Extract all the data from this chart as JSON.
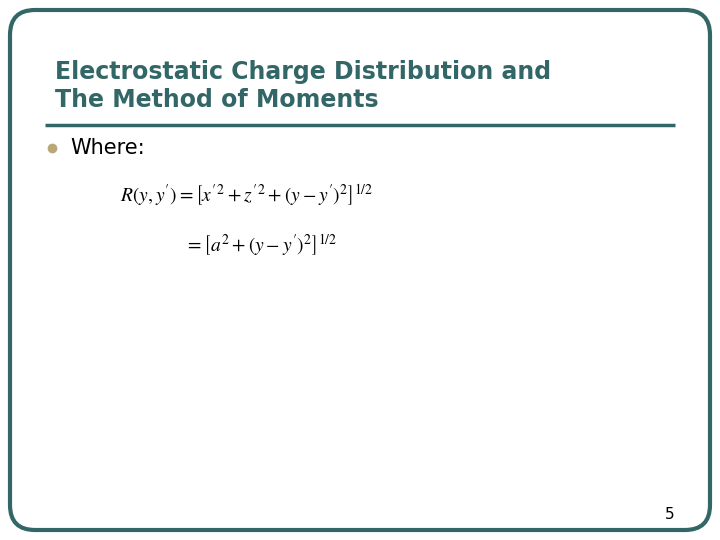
{
  "title_line1": "Electrostatic Charge Distribution and",
  "title_line2": "The Method of Moments",
  "title_color": "#336666",
  "title_fontsize": 17,
  "bullet_text": "Where:",
  "bullet_color": "#B8A878",
  "bullet_fontsize": 15,
  "eq_fontsize": 14,
  "eq_color": "black",
  "separator_color": "#336666",
  "separator_linewidth": 2.5,
  "background_color": "#FFFFFF",
  "border_color": "#336666",
  "border_linewidth": 3,
  "page_number": "5",
  "page_number_fontsize": 11,
  "page_number_color": "black"
}
